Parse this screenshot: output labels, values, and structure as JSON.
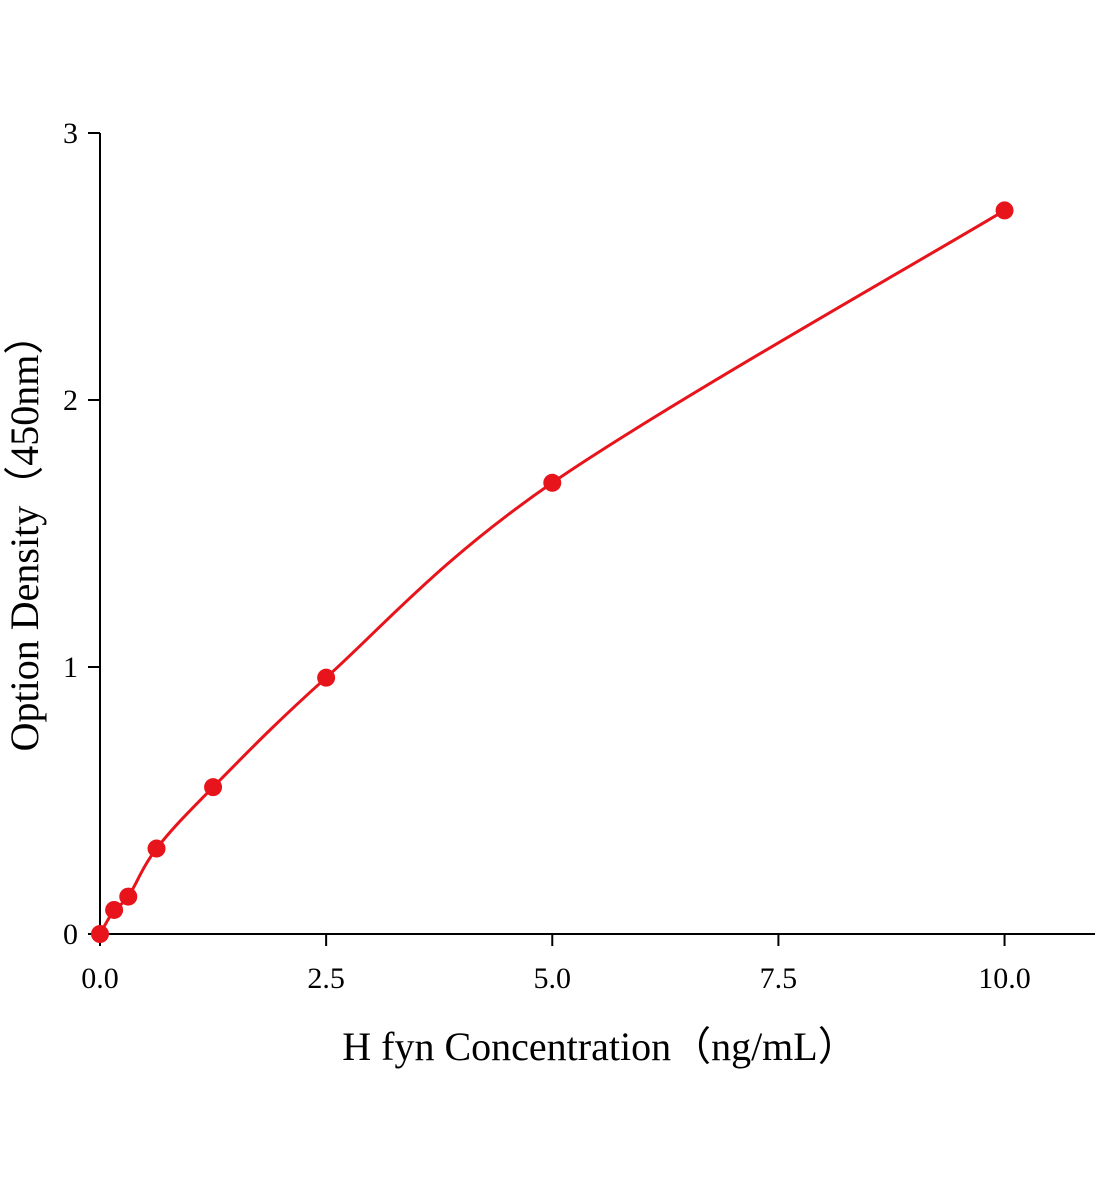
{
  "chart_data": {
    "type": "scatter",
    "x_label": "H fyn Concentration（ng/mL）",
    "y_label": "Option Density（450nm）",
    "x": [
      0,
      0.156,
      0.3125,
      0.625,
      1.25,
      2.5,
      5,
      10
    ],
    "series": [
      {
        "color": "#e8141b",
        "values": [
          0,
          0.09,
          0.14,
          0.32,
          0.55,
          0.96,
          1.69,
          2.71
        ]
      }
    ],
    "xlim": [
      0,
      11
    ],
    "ylim": [
      0,
      3
    ],
    "xticks": [
      {
        "value": 0,
        "label": "0.0"
      },
      2.5,
      {
        "value": 5,
        "label": "5.0"
      },
      7.5,
      {
        "value": 10,
        "label": "10.0"
      }
    ],
    "yticks": [
      0,
      1,
      2,
      3
    ],
    "fit_line": true
  }
}
